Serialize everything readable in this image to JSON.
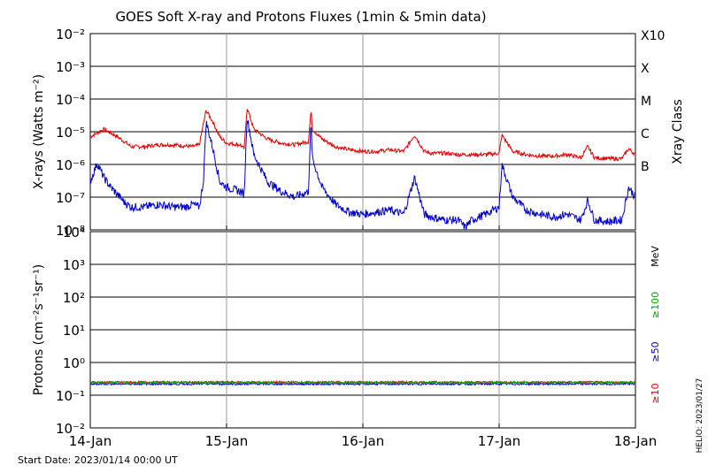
{
  "title": "GOES Soft X-ray and Protons Fluxes   (1min & 5min data)",
  "footer": {
    "start_date": "Start Date: 2023/01/14 00:00 UT",
    "credit": "HELIO: 2023/01/27"
  },
  "colors": {
    "xray_short": "#0000cc",
    "xray_long": "#dd0000",
    "p10": "#dd0000",
    "p50": "#0000cc",
    "p100": "#00aa00"
  },
  "chart_data": [
    {
      "type": "line",
      "ylabel": "X-rays (Watts m⁻²)",
      "yscale": "log",
      "ylim": [
        1e-08,
        0.01
      ],
      "y_ticks": [
        "10⁻⁸",
        "10⁻⁷",
        "10⁻⁶",
        "10⁻⁵",
        "10⁻⁴",
        "10⁻³",
        "10⁻²"
      ],
      "right_axis_label": "Xray Class",
      "class_labels": [
        {
          "label": "B",
          "value": 1e-07
        },
        {
          "label": "C",
          "value": 1e-06
        },
        {
          "label": "M",
          "value": 1e-05
        },
        {
          "label": "X",
          "value": 0.0001
        },
        {
          "label": "X10",
          "value": 0.001
        }
      ],
      "x_ticks": [
        "14-Jan",
        "15-Jan",
        "16-Jan",
        "17-Jan",
        "18-Jan"
      ],
      "xlim": [
        "2023-01-14",
        "2023-01-18"
      ],
      "series": [
        {
          "color": "#dd0000",
          "x": [
            0.0,
            0.1,
            0.2,
            0.25,
            0.3,
            0.4,
            0.5,
            0.6,
            0.75,
            0.8,
            0.85,
            0.9,
            0.95,
            1.0,
            1.1,
            1.13,
            1.15,
            1.2,
            1.3,
            1.4,
            1.5,
            1.6,
            1.62,
            1.63,
            1.7,
            1.8,
            1.9,
            2.0,
            2.1,
            2.2,
            2.3,
            2.38,
            2.45,
            2.5,
            2.6,
            2.7,
            2.8,
            2.9,
            3.0,
            3.02,
            3.1,
            3.2,
            3.3,
            3.4,
            3.5,
            3.6,
            3.65,
            3.7,
            3.8,
            3.9,
            3.95,
            4.0
          ],
          "y": [
            7e-06,
            1.2e-05,
            7e-06,
            5e-06,
            3.5e-06,
            3.5e-06,
            4e-06,
            4e-06,
            3.5e-06,
            4e-06,
            4.5e-05,
            2e-05,
            7e-06,
            4.5e-06,
            4e-06,
            3e-06,
            5.5e-05,
            1.2e-05,
            6e-06,
            4.5e-06,
            4e-06,
            5e-06,
            4.5e-05,
            1.2e-05,
            6e-06,
            3.5e-06,
            2.8e-06,
            2.5e-06,
            2.5e-06,
            2.8e-06,
            2.5e-06,
            8e-06,
            2.5e-06,
            2.2e-06,
            2.2e-06,
            2e-06,
            2e-06,
            2e-06,
            2.2e-06,
            8e-06,
            2.5e-06,
            2e-06,
            1.8e-06,
            1.8e-06,
            2e-06,
            1.6e-06,
            3.5e-06,
            1.6e-06,
            1.5e-06,
            1.5e-06,
            3e-06,
            2e-06
          ]
        },
        {
          "color": "#0000cc",
          "x": [
            0.0,
            0.05,
            0.1,
            0.15,
            0.2,
            0.25,
            0.3,
            0.4,
            0.5,
            0.6,
            0.7,
            0.75,
            0.8,
            0.83,
            0.85,
            0.9,
            0.95,
            1.0,
            1.1,
            1.13,
            1.15,
            1.2,
            1.3,
            1.4,
            1.5,
            1.6,
            1.62,
            1.63,
            1.7,
            1.8,
            1.9,
            2.0,
            2.1,
            2.2,
            2.3,
            2.38,
            2.45,
            2.5,
            2.6,
            2.7,
            2.75,
            2.8,
            2.9,
            3.0,
            3.02,
            3.1,
            3.2,
            3.3,
            3.4,
            3.5,
            3.6,
            3.65,
            3.7,
            3.8,
            3.9,
            3.95,
            4.0
          ],
          "y": [
            3e-07,
            1.1e-06,
            4e-07,
            2e-07,
            1.2e-07,
            7e-08,
            5e-08,
            5e-08,
            6e-08,
            5e-08,
            5e-08,
            6e-08,
            5e-08,
            3e-07,
            2e-05,
            3e-06,
            3e-07,
            2e-07,
            1.5e-07,
            1.2e-07,
            3e-05,
            2e-06,
            3e-07,
            1.5e-07,
            1e-07,
            1.5e-07,
            2e-05,
            1.5e-06,
            2e-07,
            6e-08,
            3.5e-08,
            3e-08,
            3.5e-08,
            4e-08,
            3e-08,
            4e-07,
            3e-08,
            2.5e-08,
            2e-08,
            2e-08,
            1.2e-08,
            2e-08,
            3e-08,
            5e-08,
            1e-06,
            1e-07,
            4e-08,
            3e-08,
            2.5e-08,
            3e-08,
            2e-08,
            8e-08,
            2e-08,
            1.8e-08,
            2e-08,
            2e-07,
            1e-07
          ]
        }
      ]
    },
    {
      "type": "line",
      "ylabel": "Protons (cm⁻²s⁻¹sr⁻¹)",
      "yscale": "log",
      "ylim": [
        0.01,
        10000
      ],
      "y_ticks": [
        "10⁻²",
        "10⁻¹",
        "10⁰",
        "10¹",
        "10²",
        "10³",
        "10⁴"
      ],
      "threshold": 10,
      "legend": [
        "MeV",
        "≥100",
        "≥50",
        "≥10"
      ],
      "x_ticks": [
        "14-Jan",
        "15-Jan",
        "16-Jan",
        "17-Jan",
        "18-Jan"
      ],
      "xlim": [
        "2023-01-14",
        "2023-01-18"
      ],
      "series": [
        {
          "name": "≥10",
          "color": "#dd0000",
          "x": [
            0,
            4
          ],
          "y": [
            0.25,
            0.25
          ]
        },
        {
          "name": "≥50",
          "color": "#0000cc",
          "x": [
            0,
            4
          ],
          "y": [
            0.22,
            0.22
          ]
        },
        {
          "name": "≥100",
          "color": "#00aa00",
          "x": [
            0,
            4
          ],
          "y": [
            0.24,
            0.24
          ]
        }
      ]
    }
  ]
}
